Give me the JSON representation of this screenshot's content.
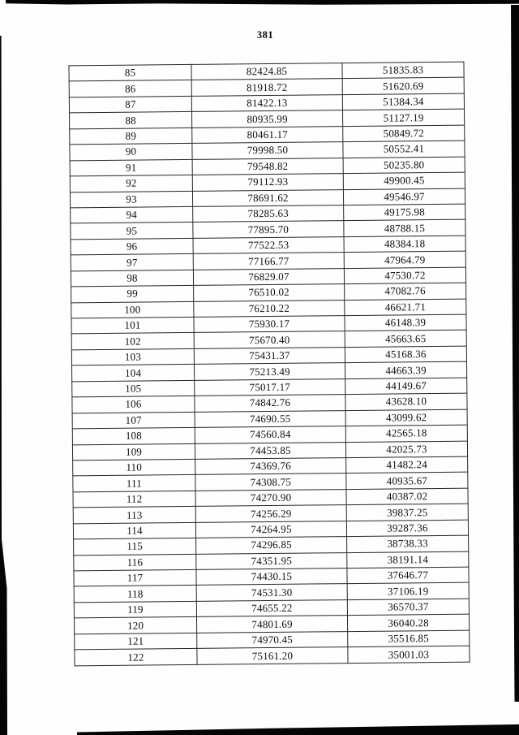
{
  "page": {
    "number": "381"
  },
  "table": {
    "rows": [
      [
        "85",
        "82424.85",
        "51835.83"
      ],
      [
        "86",
        "81918.72",
        "51620.69"
      ],
      [
        "87",
        "81422.13",
        "51384.34"
      ],
      [
        "88",
        "80935.99",
        "51127.19"
      ],
      [
        "89",
        "80461.17",
        "50849.72"
      ],
      [
        "90",
        "79998.50",
        "50552.41"
      ],
      [
        "91",
        "79548.82",
        "50235.80"
      ],
      [
        "92",
        "79112.93",
        "49900.45"
      ],
      [
        "93",
        "78691.62",
        "49546.97"
      ],
      [
        "94",
        "78285.63",
        "49175.98"
      ],
      [
        "95",
        "77895.70",
        "48788.15"
      ],
      [
        "96",
        "77522.53",
        "48384.18"
      ],
      [
        "97",
        "77166.77",
        "47964.79"
      ],
      [
        "98",
        "76829.07",
        "47530.72"
      ],
      [
        "99",
        "76510.02",
        "47082.76"
      ],
      [
        "100",
        "76210.22",
        "46621.71"
      ],
      [
        "101",
        "75930.17",
        "46148.39"
      ],
      [
        "102",
        "75670.40",
        "45663.65"
      ],
      [
        "103",
        "75431.37",
        "45168.36"
      ],
      [
        "104",
        "75213.49",
        "44663.39"
      ],
      [
        "105",
        "75017.17",
        "44149.67"
      ],
      [
        "106",
        "74842.76",
        "43628.10"
      ],
      [
        "107",
        "74690.55",
        "43099.62"
      ],
      [
        "108",
        "74560.84",
        "42565.18"
      ],
      [
        "109",
        "74453.85",
        "42025.73"
      ],
      [
        "110",
        "74369.76",
        "41482.24"
      ],
      [
        "111",
        "74308.75",
        "40935.67"
      ],
      [
        "112",
        "74270.90",
        "40387.02"
      ],
      [
        "113",
        "74256.29",
        "39837.25"
      ],
      [
        "114",
        "74264.95",
        "39287.36"
      ],
      [
        "115",
        "74296.85",
        "38738.33"
      ],
      [
        "116",
        "74351.95",
        "38191.14"
      ],
      [
        "117",
        "74430.15",
        "37646.77"
      ],
      [
        "118",
        "74531.30",
        "37106.19"
      ],
      [
        "119",
        "74655.22",
        "36570.37"
      ],
      [
        "120",
        "74801.69",
        "36040.28"
      ],
      [
        "121",
        "74970.45",
        "35516.85"
      ],
      [
        "122",
        "75161.20",
        "35001.03"
      ]
    ]
  }
}
